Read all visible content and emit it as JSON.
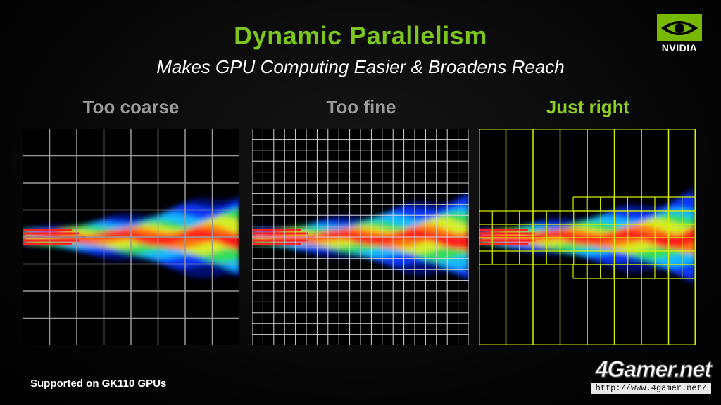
{
  "header": {
    "title": "Dynamic Parallelism",
    "subtitle": "Makes GPU Computing Easier & Broadens Reach"
  },
  "panels": [
    {
      "label": "Too coarse",
      "label_color": "#9a9a9a",
      "grid_color": "#9a9a9a",
      "grid": "coarse"
    },
    {
      "label": "Too fine",
      "label_color": "#9a9a9a",
      "grid_color": "#d8d8d8",
      "grid": "fine"
    },
    {
      "label": "Just right",
      "label_color": "#8fcf1f",
      "grid_color": "#d8f000",
      "grid": "adaptive"
    }
  ],
  "footnote": "Supported on GK110 GPUs",
  "logo": {
    "name": "NVIDIA",
    "icon": "nvidia-eye-icon",
    "color": "#76b900"
  },
  "watermark": {
    "brand": "4Gamer.net",
    "url": "http://www.4gamer.net/"
  }
}
